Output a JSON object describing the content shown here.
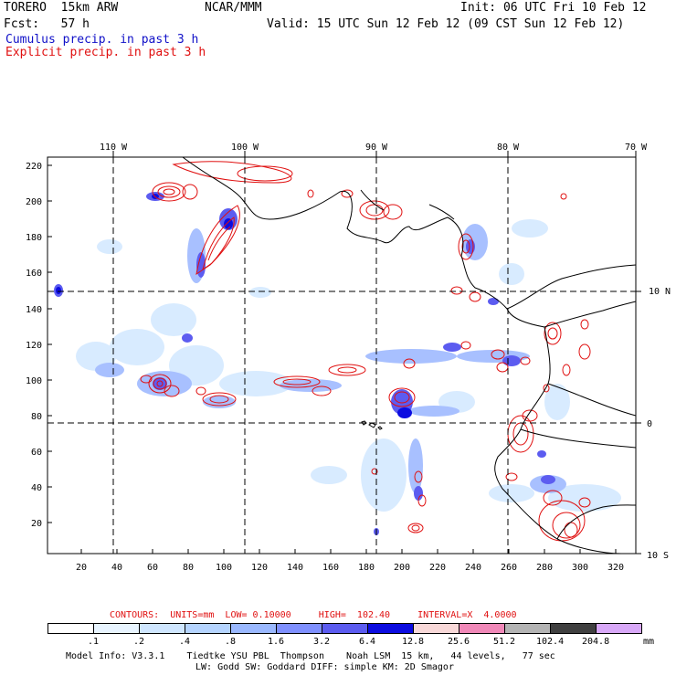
{
  "header": {
    "model": "TORERO  15km ARW",
    "org": "NCAR/MMM",
    "init": "Init: 06 UTC Fri 10 Feb 12",
    "fcst": "Fcst:   57 h",
    "valid": "Valid: 15 UTC Sun 12 Feb 12 (09 CST Sun 12 Feb 12)",
    "field1": "Cumulus precip. in past 3 h",
    "field2": "Explicit precip. in past 3 h",
    "field1_color": "#1010c8",
    "field2_color": "#e01010"
  },
  "axes": {
    "top_lon": [
      "110 W",
      "100 W",
      "90 W",
      "80 W",
      "70 W"
    ],
    "right_lat": [
      "10 N",
      "0",
      "10 S"
    ],
    "left_y": [
      "220",
      "200",
      "180",
      "160",
      "140",
      "120",
      "100",
      "80",
      "60",
      "40",
      "20"
    ],
    "bottom_x": [
      "20",
      "40",
      "60",
      "80",
      "100",
      "120",
      "140",
      "160",
      "180",
      "200",
      "220",
      "240",
      "260",
      "280",
      "300",
      "320"
    ]
  },
  "contour_info": "CONTOURS:  UNITS=mm  LOW= 0.10000     HIGH=  102.40     INTERVAL=X  4.0000",
  "colorbar": {
    "labels": [
      ".1",
      ".2",
      ".4",
      ".8",
      "1.6",
      "3.2",
      "6.4",
      "12.8",
      "25.6",
      "51.2",
      "102.4",
      "204.8"
    ],
    "unit": "mm",
    "colors": [
      "#ffffff",
      "#e8f4ff",
      "#cfe6ff",
      "#b5d4ff",
      "#9ab8ff",
      "#7f90ff",
      "#5c5cf0",
      "#0c0ce0",
      "#f8d8d8",
      "#f088b8",
      "#b4b4b4",
      "#404040",
      "#d8a8f8"
    ]
  },
  "footer": {
    "line1": "Model Info: V3.3.1    Tiedtke YSU PBL  Thompson    Noah LSM  15 km,   44 levels,   77 sec",
    "line2": "LW: Godd SW: Goddard DIFF: simple KM: 2D Smagor"
  }
}
